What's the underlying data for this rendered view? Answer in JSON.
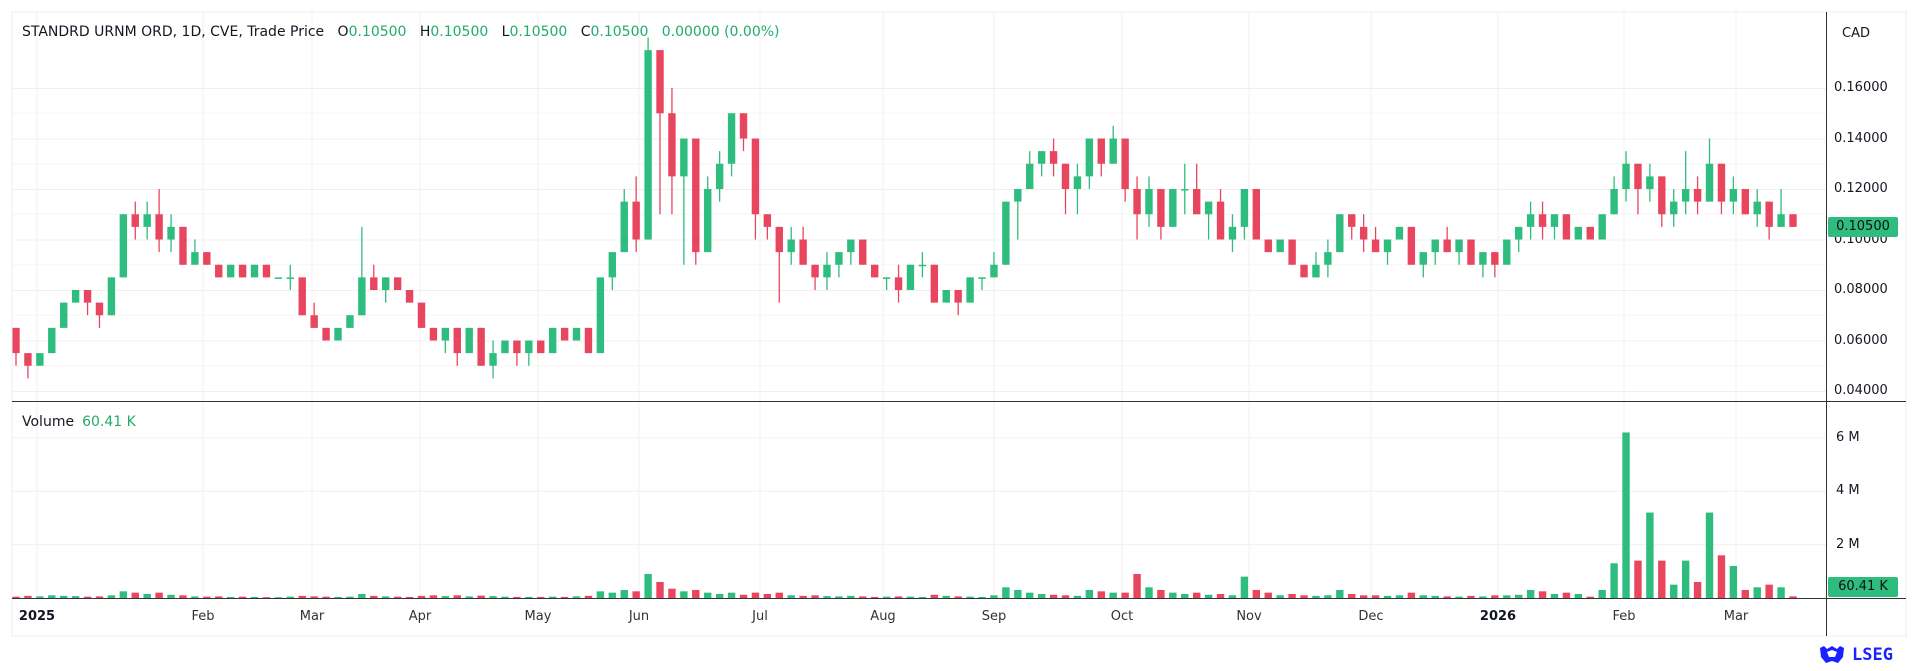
{
  "header": {
    "symbol": "STANDRD URNM ORD, 1D, CVE, Trade Price",
    "o_label": "O",
    "o": "0.10500",
    "h_label": "H",
    "h": "0.10500",
    "l_label": "L",
    "l": "0.10500",
    "c_label": "C",
    "c": "0.10500",
    "change": "0.00000 (0.00%)"
  },
  "currency": "CAD",
  "volume": {
    "label": "Volume",
    "value": "60.41 K"
  },
  "last_price_badge": "0.10500",
  "last_volume_badge": "60.41 K",
  "logo": "LSEG",
  "colors": {
    "up": "#2ebd7f",
    "down": "#e8455f",
    "grid": "#f0f0f0"
  },
  "chart_data": {
    "type": "candlestick",
    "title": "STANDRD URNM ORD, 1D, CVE, Trade Price",
    "price_ticks": [
      "0.16000",
      "0.14000",
      "0.12000",
      "0.10000",
      "0.08000",
      "0.06000",
      "0.04000"
    ],
    "price_tick_values": [
      0.16,
      0.14,
      0.12,
      0.1,
      0.08,
      0.06,
      0.04
    ],
    "volume_ticks": [
      "6 M",
      "4 M",
      "2 M"
    ],
    "volume_tick_values": [
      6,
      4,
      2
    ],
    "time_ticks": [
      "2025",
      "Feb",
      "Mar",
      "Apr",
      "May",
      "Jun",
      "Jul",
      "Aug",
      "Sep",
      "Oct",
      "Nov",
      "Dec",
      "2026",
      "Feb",
      "Mar"
    ],
    "ylim": [
      0.04,
      0.16
    ],
    "volume_unit": "M",
    "candles_ohlcv": [
      [
        0.065,
        0.065,
        0.05,
        0.055,
        0.05
      ],
      [
        0.055,
        0.055,
        0.045,
        0.05,
        0.08
      ],
      [
        0.05,
        0.055,
        0.05,
        0.055,
        0.06
      ],
      [
        0.055,
        0.065,
        0.055,
        0.065,
        0.1
      ],
      [
        0.065,
        0.075,
        0.065,
        0.075,
        0.08
      ],
      [
        0.075,
        0.08,
        0.075,
        0.08,
        0.07
      ],
      [
        0.08,
        0.08,
        0.07,
        0.075,
        0.05
      ],
      [
        0.075,
        0.075,
        0.065,
        0.07,
        0.06
      ],
      [
        0.07,
        0.085,
        0.07,
        0.085,
        0.1
      ],
      [
        0.085,
        0.11,
        0.085,
        0.11,
        0.25
      ],
      [
        0.11,
        0.115,
        0.1,
        0.105,
        0.2
      ],
      [
        0.105,
        0.115,
        0.1,
        0.11,
        0.15
      ],
      [
        0.11,
        0.12,
        0.095,
        0.1,
        0.2
      ],
      [
        0.1,
        0.11,
        0.095,
        0.105,
        0.12
      ],
      [
        0.105,
        0.105,
        0.09,
        0.09,
        0.1
      ],
      [
        0.09,
        0.1,
        0.09,
        0.095,
        0.06
      ],
      [
        0.095,
        0.095,
        0.09,
        0.09,
        0.05
      ],
      [
        0.09,
        0.09,
        0.085,
        0.085,
        0.06
      ],
      [
        0.085,
        0.09,
        0.085,
        0.09,
        0.04
      ],
      [
        0.09,
        0.09,
        0.085,
        0.085,
        0.05
      ],
      [
        0.085,
        0.09,
        0.085,
        0.09,
        0.04
      ],
      [
        0.09,
        0.09,
        0.085,
        0.085,
        0.03
      ],
      [
        0.085,
        0.085,
        0.085,
        0.085,
        0.03
      ],
      [
        0.085,
        0.09,
        0.08,
        0.085,
        0.05
      ],
      [
        0.085,
        0.085,
        0.07,
        0.07,
        0.08
      ],
      [
        0.07,
        0.075,
        0.065,
        0.065,
        0.06
      ],
      [
        0.065,
        0.065,
        0.06,
        0.06,
        0.05
      ],
      [
        0.06,
        0.065,
        0.06,
        0.065,
        0.04
      ],
      [
        0.065,
        0.07,
        0.065,
        0.07,
        0.05
      ],
      [
        0.07,
        0.105,
        0.07,
        0.085,
        0.15
      ],
      [
        0.085,
        0.09,
        0.08,
        0.08,
        0.08
      ],
      [
        0.08,
        0.085,
        0.075,
        0.085,
        0.06
      ],
      [
        0.085,
        0.085,
        0.08,
        0.08,
        0.05
      ],
      [
        0.08,
        0.08,
        0.075,
        0.075,
        0.04
      ],
      [
        0.075,
        0.075,
        0.065,
        0.065,
        0.08
      ],
      [
        0.065,
        0.065,
        0.06,
        0.06,
        0.1
      ],
      [
        0.06,
        0.065,
        0.055,
        0.065,
        0.07
      ],
      [
        0.065,
        0.065,
        0.05,
        0.055,
        0.1
      ],
      [
        0.055,
        0.065,
        0.055,
        0.065,
        0.06
      ],
      [
        0.065,
        0.065,
        0.05,
        0.05,
        0.09
      ],
      [
        0.05,
        0.06,
        0.045,
        0.055,
        0.07
      ],
      [
        0.055,
        0.06,
        0.055,
        0.06,
        0.05
      ],
      [
        0.06,
        0.06,
        0.05,
        0.055,
        0.04
      ],
      [
        0.055,
        0.06,
        0.05,
        0.06,
        0.04
      ],
      [
        0.06,
        0.06,
        0.055,
        0.055,
        0.04
      ],
      [
        0.055,
        0.065,
        0.055,
        0.065,
        0.05
      ],
      [
        0.065,
        0.065,
        0.06,
        0.06,
        0.04
      ],
      [
        0.06,
        0.065,
        0.06,
        0.065,
        0.06
      ],
      [
        0.065,
        0.065,
        0.055,
        0.055,
        0.08
      ],
      [
        0.055,
        0.085,
        0.055,
        0.085,
        0.25
      ],
      [
        0.085,
        0.095,
        0.08,
        0.095,
        0.2
      ],
      [
        0.095,
        0.12,
        0.095,
        0.115,
        0.3
      ],
      [
        0.115,
        0.125,
        0.095,
        0.1,
        0.25
      ],
      [
        0.1,
        0.18,
        0.1,
        0.175,
        0.9
      ],
      [
        0.175,
        0.175,
        0.11,
        0.15,
        0.6
      ],
      [
        0.15,
        0.16,
        0.11,
        0.125,
        0.35
      ],
      [
        0.125,
        0.14,
        0.09,
        0.14,
        0.25
      ],
      [
        0.14,
        0.14,
        0.09,
        0.095,
        0.3
      ],
      [
        0.095,
        0.125,
        0.095,
        0.12,
        0.2
      ],
      [
        0.12,
        0.135,
        0.115,
        0.13,
        0.15
      ],
      [
        0.13,
        0.15,
        0.125,
        0.15,
        0.2
      ],
      [
        0.15,
        0.15,
        0.135,
        0.14,
        0.12
      ],
      [
        0.14,
        0.14,
        0.1,
        0.11,
        0.2
      ],
      [
        0.11,
        0.11,
        0.1,
        0.105,
        0.15
      ],
      [
        0.105,
        0.105,
        0.075,
        0.095,
        0.2
      ],
      [
        0.095,
        0.105,
        0.09,
        0.1,
        0.1
      ],
      [
        0.1,
        0.105,
        0.09,
        0.09,
        0.08
      ],
      [
        0.09,
        0.09,
        0.08,
        0.085,
        0.1
      ],
      [
        0.085,
        0.095,
        0.08,
        0.09,
        0.07
      ],
      [
        0.09,
        0.095,
        0.085,
        0.095,
        0.06
      ],
      [
        0.095,
        0.1,
        0.09,
        0.1,
        0.08
      ],
      [
        0.1,
        0.1,
        0.09,
        0.09,
        0.06
      ],
      [
        0.09,
        0.09,
        0.085,
        0.085,
        0.04
      ],
      [
        0.085,
        0.085,
        0.08,
        0.085,
        0.05
      ],
      [
        0.085,
        0.09,
        0.075,
        0.08,
        0.06
      ],
      [
        0.08,
        0.09,
        0.08,
        0.09,
        0.05
      ],
      [
        0.09,
        0.095,
        0.085,
        0.09,
        0.04
      ],
      [
        0.09,
        0.09,
        0.075,
        0.075,
        0.12
      ],
      [
        0.075,
        0.08,
        0.075,
        0.08,
        0.08
      ],
      [
        0.08,
        0.08,
        0.07,
        0.075,
        0.06
      ],
      [
        0.075,
        0.085,
        0.075,
        0.085,
        0.05
      ],
      [
        0.085,
        0.085,
        0.08,
        0.085,
        0.04
      ],
      [
        0.085,
        0.095,
        0.085,
        0.09,
        0.1
      ],
      [
        0.09,
        0.115,
        0.09,
        0.115,
        0.4
      ],
      [
        0.115,
        0.12,
        0.1,
        0.12,
        0.3
      ],
      [
        0.12,
        0.135,
        0.12,
        0.13,
        0.2
      ],
      [
        0.13,
        0.135,
        0.125,
        0.135,
        0.15
      ],
      [
        0.135,
        0.14,
        0.125,
        0.13,
        0.12
      ],
      [
        0.13,
        0.13,
        0.11,
        0.12,
        0.1
      ],
      [
        0.12,
        0.13,
        0.11,
        0.125,
        0.08
      ],
      [
        0.125,
        0.14,
        0.12,
        0.14,
        0.3
      ],
      [
        0.14,
        0.14,
        0.125,
        0.13,
        0.25
      ],
      [
        0.13,
        0.145,
        0.13,
        0.14,
        0.2
      ],
      [
        0.14,
        0.14,
        0.115,
        0.12,
        0.2
      ],
      [
        0.12,
        0.125,
        0.1,
        0.11,
        0.9
      ],
      [
        0.11,
        0.125,
        0.105,
        0.12,
        0.4
      ],
      [
        0.12,
        0.12,
        0.1,
        0.105,
        0.3
      ],
      [
        0.105,
        0.12,
        0.105,
        0.12,
        0.2
      ],
      [
        0.12,
        0.13,
        0.11,
        0.12,
        0.15
      ],
      [
        0.12,
        0.13,
        0.11,
        0.11,
        0.2
      ],
      [
        0.11,
        0.115,
        0.1,
        0.115,
        0.12
      ],
      [
        0.115,
        0.12,
        0.1,
        0.1,
        0.15
      ],
      [
        0.1,
        0.11,
        0.095,
        0.105,
        0.1
      ],
      [
        0.105,
        0.12,
        0.1,
        0.12,
        0.8
      ],
      [
        0.12,
        0.12,
        0.1,
        0.1,
        0.3
      ],
      [
        0.1,
        0.1,
        0.095,
        0.095,
        0.2
      ],
      [
        0.095,
        0.1,
        0.095,
        0.1,
        0.1
      ],
      [
        0.1,
        0.1,
        0.09,
        0.09,
        0.15
      ],
      [
        0.09,
        0.09,
        0.085,
        0.085,
        0.1
      ],
      [
        0.085,
        0.095,
        0.085,
        0.09,
        0.08
      ],
      [
        0.09,
        0.1,
        0.085,
        0.095,
        0.1
      ],
      [
        0.095,
        0.11,
        0.095,
        0.11,
        0.3
      ],
      [
        0.11,
        0.11,
        0.1,
        0.105,
        0.15
      ],
      [
        0.105,
        0.11,
        0.095,
        0.1,
        0.1
      ],
      [
        0.1,
        0.105,
        0.095,
        0.095,
        0.1
      ],
      [
        0.095,
        0.1,
        0.09,
        0.1,
        0.08
      ],
      [
        0.1,
        0.105,
        0.1,
        0.105,
        0.1
      ],
      [
        0.105,
        0.105,
        0.09,
        0.09,
        0.2
      ],
      [
        0.09,
        0.095,
        0.085,
        0.095,
        0.1
      ],
      [
        0.095,
        0.1,
        0.09,
        0.1,
        0.08
      ],
      [
        0.1,
        0.105,
        0.095,
        0.095,
        0.06
      ],
      [
        0.095,
        0.1,
        0.09,
        0.1,
        0.05
      ],
      [
        0.1,
        0.1,
        0.09,
        0.09,
        0.08
      ],
      [
        0.09,
        0.095,
        0.085,
        0.095,
        0.06
      ],
      [
        0.095,
        0.095,
        0.085,
        0.09,
        0.1
      ],
      [
        0.09,
        0.1,
        0.09,
        0.1,
        0.1
      ],
      [
        0.1,
        0.105,
        0.095,
        0.105,
        0.12
      ],
      [
        0.105,
        0.115,
        0.1,
        0.11,
        0.3
      ],
      [
        0.11,
        0.115,
        0.1,
        0.105,
        0.25
      ],
      [
        0.105,
        0.11,
        0.1,
        0.11,
        0.15
      ],
      [
        0.11,
        0.11,
        0.1,
        0.1,
        0.2
      ],
      [
        0.1,
        0.105,
        0.1,
        0.105,
        0.15
      ],
      [
        0.105,
        0.105,
        0.1,
        0.1,
        0.05
      ],
      [
        0.1,
        0.11,
        0.1,
        0.11,
        0.3
      ],
      [
        0.11,
        0.125,
        0.11,
        0.12,
        1.3
      ],
      [
        0.12,
        0.135,
        0.115,
        0.13,
        6.2
      ],
      [
        0.13,
        0.13,
        0.11,
        0.12,
        1.4
      ],
      [
        0.12,
        0.13,
        0.115,
        0.125,
        3.2
      ],
      [
        0.125,
        0.125,
        0.105,
        0.11,
        1.4
      ],
      [
        0.11,
        0.12,
        0.105,
        0.115,
        0.5
      ],
      [
        0.115,
        0.135,
        0.11,
        0.12,
        1.4
      ],
      [
        0.12,
        0.125,
        0.11,
        0.115,
        0.6
      ],
      [
        0.115,
        0.14,
        0.115,
        0.13,
        3.2
      ],
      [
        0.13,
        0.13,
        0.11,
        0.115,
        1.6
      ],
      [
        0.115,
        0.125,
        0.11,
        0.12,
        1.2
      ],
      [
        0.12,
        0.12,
        0.11,
        0.11,
        0.3
      ],
      [
        0.11,
        0.12,
        0.105,
        0.115,
        0.4
      ],
      [
        0.115,
        0.115,
        0.1,
        0.105,
        0.5
      ],
      [
        0.105,
        0.12,
        0.105,
        0.11,
        0.4
      ],
      [
        0.11,
        0.11,
        0.105,
        0.105,
        0.06041
      ]
    ]
  }
}
